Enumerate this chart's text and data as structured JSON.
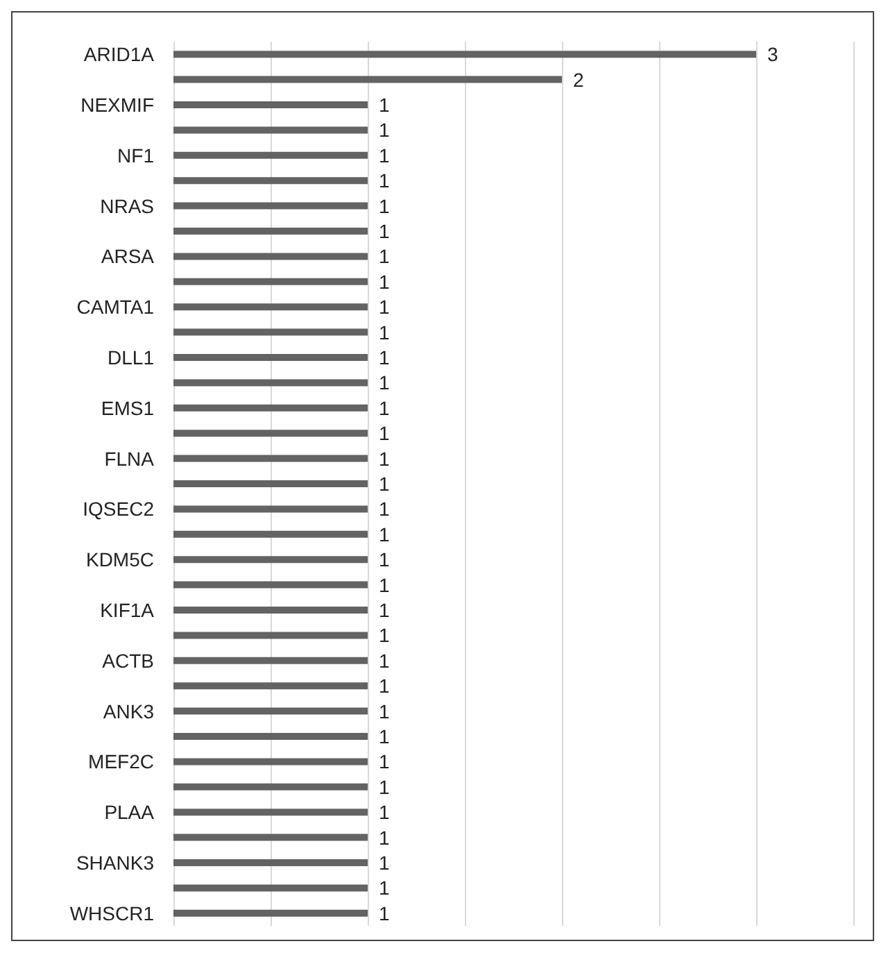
{
  "chart_data": {
    "type": "bar",
    "orientation": "horizontal",
    "categories": [
      "ARID1A",
      null,
      "NEXMIF",
      null,
      "NF1",
      null,
      "NRAS",
      null,
      "ARSA",
      null,
      "CAMTA1",
      null,
      "DLL1",
      null,
      "EMS1",
      null,
      "FLNA",
      null,
      "IQSEC2",
      null,
      "KDM5C",
      null,
      "KIF1A",
      null,
      "ACTB",
      null,
      "ANK3",
      null,
      "MEF2C",
      null,
      "PLAA",
      null,
      "SHANK3",
      null,
      "WHSCR1"
    ],
    "values": [
      3,
      2,
      1,
      1,
      1,
      1,
      1,
      1,
      1,
      1,
      1,
      1,
      1,
      1,
      1,
      1,
      1,
      1,
      1,
      1,
      1,
      1,
      1,
      1,
      1,
      1,
      1,
      1,
      1,
      1,
      1,
      1,
      1,
      1,
      1
    ],
    "color": "#636363",
    "xlim": [
      0,
      3.5
    ],
    "xticks": [
      {
        "value": 0,
        "label": null
      },
      {
        "value": 0.5,
        "label": null
      },
      {
        "value": 1,
        "label": null
      },
      {
        "value": 1.5,
        "label": null
      },
      {
        "value": 2,
        "label": null
      },
      {
        "value": 2.5,
        "label": null
      },
      {
        "value": 3,
        "label": null
      },
      {
        "value": 3.5,
        "label": null
      }
    ],
    "grid": "x",
    "tick_labels": "y",
    "data_labels": true
  }
}
